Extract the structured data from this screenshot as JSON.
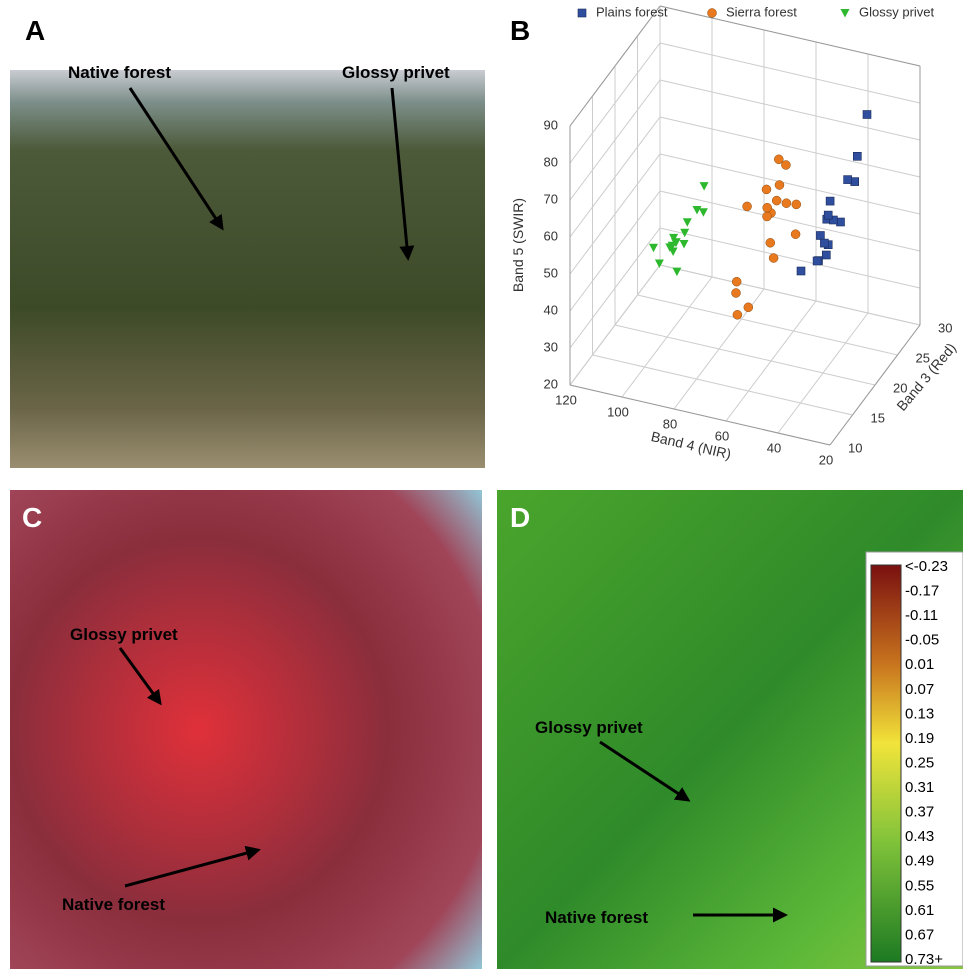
{
  "panels": [
    {
      "label": "A",
      "annotations": [
        "Native forest",
        "Glossy privet"
      ]
    },
    {
      "label": "B"
    },
    {
      "label": "C",
      "annotations": [
        "Glossy privet",
        "Native forest"
      ]
    },
    {
      "label": "D",
      "annotations": [
        "Glossy privet",
        "Native forest"
      ]
    }
  ],
  "chart_data": {
    "type": "scatter3d",
    "xlabel": "Band 4 (NIR)",
    "ylabel": "Band 3 (Red)",
    "zlabel": "Band 5 (SWIR)",
    "xlim": [
      20,
      120
    ],
    "ylim": [
      10,
      30
    ],
    "zlim": [
      20,
      90
    ],
    "xticks": [
      20,
      40,
      60,
      80,
      100,
      120
    ],
    "yticks": [
      10,
      15,
      20,
      25,
      30
    ],
    "zticks": [
      20,
      30,
      40,
      50,
      60,
      70,
      80,
      90
    ],
    "grid": true,
    "series": [
      {
        "name": "Plains forest",
        "color": "#2f4f9e",
        "marker": "square",
        "x": [
          38,
          35,
          40,
          42,
          36,
          33,
          45,
          39,
          37,
          41,
          34,
          30,
          44,
          38,
          36,
          32
        ],
        "y": [
          20,
          21,
          19,
          22,
          20,
          23,
          18,
          21,
          19,
          20,
          22,
          24,
          21,
          20,
          18,
          23
        ],
        "z": [
          55,
          60,
          52,
          58,
          62,
          68,
          50,
          65,
          54,
          57,
          70,
          85,
          48,
          63,
          59,
          75
        ]
      },
      {
        "name": "Sierra forest",
        "color": "#e8791e",
        "marker": "circle",
        "x": [
          60,
          58,
          65,
          55,
          62,
          68,
          57,
          63,
          52,
          70,
          60,
          66,
          54,
          59,
          64,
          56,
          61,
          67
        ],
        "y": [
          20,
          18,
          22,
          19,
          21,
          17,
          20,
          23,
          21,
          18,
          19,
          16,
          22,
          20,
          17,
          21,
          24,
          19
        ],
        "z": [
          60,
          65,
          55,
          70,
          50,
          45,
          75,
          58,
          62,
          40,
          68,
          38,
          52,
          48,
          66,
          72,
          56,
          35
        ]
      },
      {
        "name": "Glossy privet",
        "color": "#2eb82e",
        "marker": "triangle",
        "x": [
          90,
          88,
          95,
          85,
          92,
          98,
          87,
          93,
          84,
          96,
          89,
          91,
          86,
          94,
          100
        ],
        "y": [
          18,
          17,
          19,
          18,
          16,
          20,
          17,
          18,
          19,
          16,
          15,
          17,
          20,
          18,
          17
        ],
        "z": [
          50,
          55,
          48,
          60,
          52,
          45,
          58,
          50,
          65,
          47,
          53,
          44,
          56,
          51,
          49
        ]
      }
    ]
  },
  "colorbar": {
    "labels": [
      "<-0.23",
      "-0.17",
      "-0.11",
      "-0.05",
      "0.01",
      "0.07",
      "0.13",
      "0.19",
      "0.25",
      "0.31",
      "0.37",
      "0.43",
      "0.49",
      "0.55",
      "0.61",
      "0.67",
      "0.73+"
    ]
  }
}
